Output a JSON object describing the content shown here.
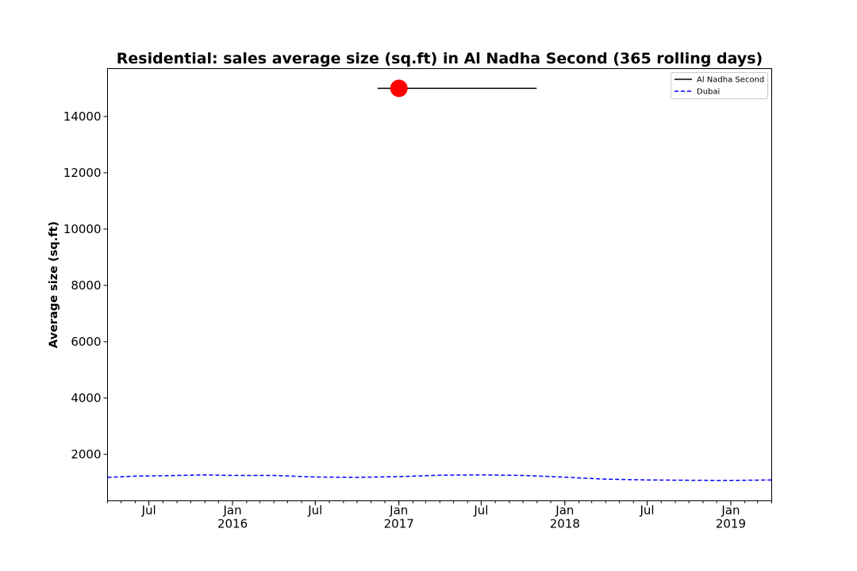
{
  "chart_data": {
    "type": "line",
    "title": "Residential: sales average size (sq.ft) in Al Nadha Second (365 rolling days)",
    "ylabel": "Average size (sq.ft)",
    "xlabel": "",
    "xlim": [
      "2015-04-01",
      "2019-04-01"
    ],
    "ylim": [
      350,
      15700
    ],
    "yticks": [
      2000,
      4000,
      6000,
      8000,
      10000,
      12000,
      14000
    ],
    "xticks": [
      {
        "date": "2015-07-01",
        "label": "Jul",
        "year": ""
      },
      {
        "date": "2016-01-01",
        "label": "Jan",
        "year": "2016"
      },
      {
        "date": "2016-07-01",
        "label": "Jul",
        "year": ""
      },
      {
        "date": "2017-01-01",
        "label": "Jan",
        "year": "2017"
      },
      {
        "date": "2017-07-01",
        "label": "Jul",
        "year": ""
      },
      {
        "date": "2018-01-01",
        "label": "Jan",
        "year": "2018"
      },
      {
        "date": "2018-07-01",
        "label": "Jul",
        "year": ""
      },
      {
        "date": "2019-01-01",
        "label": "Jan",
        "year": "2019"
      }
    ],
    "legend_position": "top-right",
    "grid": false,
    "series": [
      {
        "name": "Al Nadha Second",
        "color": "#000000",
        "style": "solid",
        "points": [
          [
            "2016-11-15",
            15000
          ],
          [
            "2017-10-31",
            15000
          ]
        ],
        "marker": {
          "x": "2017-01-01",
          "y": 15000,
          "color": "#ff0000"
        }
      },
      {
        "name": "Dubai",
        "color": "#0000ff",
        "style": "dashed",
        "points": [
          [
            "2015-04-01",
            1180
          ],
          [
            "2015-06-01",
            1230
          ],
          [
            "2015-08-01",
            1240
          ],
          [
            "2015-11-01",
            1270
          ],
          [
            "2016-01-01",
            1250
          ],
          [
            "2016-04-01",
            1250
          ],
          [
            "2016-07-01",
            1195
          ],
          [
            "2016-10-01",
            1185
          ],
          [
            "2017-01-01",
            1210
          ],
          [
            "2017-04-01",
            1260
          ],
          [
            "2017-07-01",
            1270
          ],
          [
            "2017-10-01",
            1250
          ],
          [
            "2018-01-01",
            1190
          ],
          [
            "2018-04-01",
            1120
          ],
          [
            "2018-07-01",
            1090
          ],
          [
            "2018-10-01",
            1080
          ],
          [
            "2019-01-01",
            1075
          ],
          [
            "2019-04-01",
            1090
          ]
        ]
      }
    ]
  }
}
